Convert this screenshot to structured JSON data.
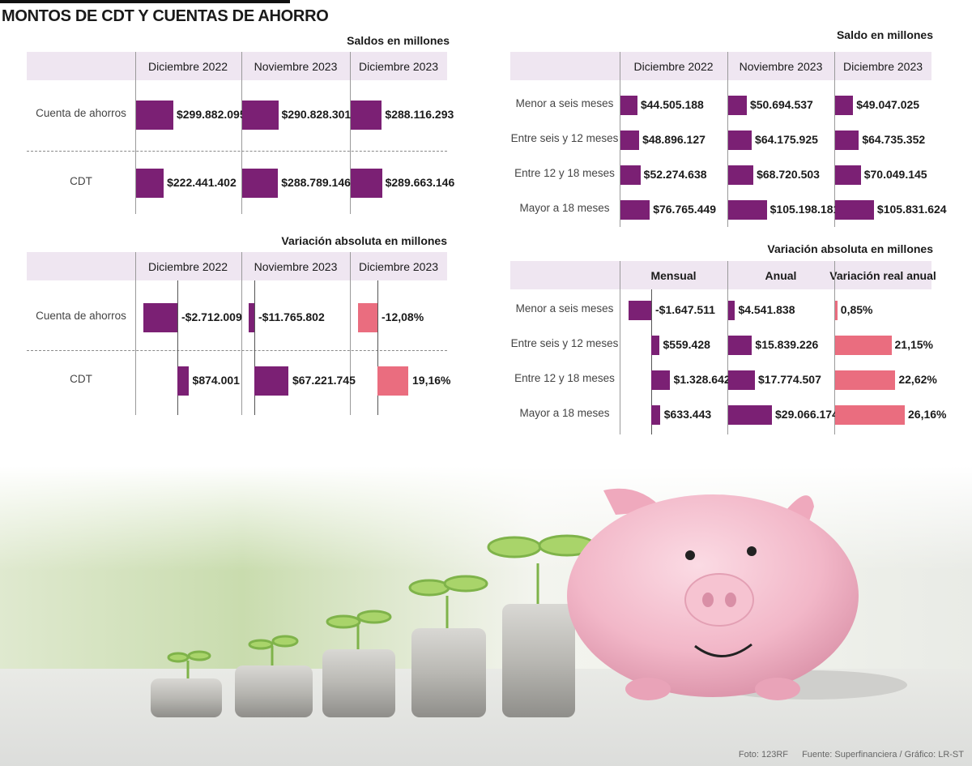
{
  "title": "MONTOS DE CDT Y CUENTAS DE AHORRO",
  "credits": {
    "photo": "Foto: 123RF",
    "source": "Fuente: Superfinanciera / Gráfico: LR-ST"
  },
  "colors": {
    "purple": "#7b2074",
    "pink": "#ea6d7f",
    "header": "#efe6f1"
  },
  "chart_data": [
    {
      "type": "bar",
      "title": "Saldos en millones",
      "categories": [
        "Cuenta de ahorros",
        "CDT"
      ],
      "series": [
        {
          "name": "Diciembre 2022",
          "values": [
            299882095,
            222441402
          ],
          "labels": [
            "$299.882.095",
            "$222.441.402"
          ]
        },
        {
          "name": "Noviembre 2023",
          "values": [
            290828301,
            288789146
          ],
          "labels": [
            "$290.828.301",
            "$288.789.146"
          ]
        },
        {
          "name": "Diciembre 2023",
          "values": [
            288116293,
            289663146
          ],
          "labels": [
            "$288.116.293",
            "$289.663.146"
          ]
        }
      ]
    },
    {
      "type": "bar",
      "title": "Variación absoluta en millones",
      "categories": [
        "Cuenta de ahorros",
        "CDT"
      ],
      "series": [
        {
          "name": "Diciembre 2022",
          "values": [
            -2712009,
            874001
          ],
          "labels": [
            "-$2.712.009",
            "$874.001"
          ]
        },
        {
          "name": "Noviembre 2023",
          "values": [
            -11765802,
            67221745
          ],
          "labels": [
            "-$11.765.802",
            "$67.221.745"
          ]
        },
        {
          "name": "Diciembre 2023",
          "values": [
            -12.08,
            19.16
          ],
          "labels": [
            "-12,08%",
            "19,16%"
          ]
        }
      ]
    },
    {
      "type": "bar",
      "title": "Saldo en millones",
      "categories": [
        "Menor a seis meses",
        "Entre seis y 12 meses",
        "Entre 12 y 18 meses",
        "Mayor a 18 meses"
      ],
      "series": [
        {
          "name": "Diciembre 2022",
          "values": [
            44505188,
            48896127,
            52274638,
            76765449
          ],
          "labels": [
            "$44.505.188",
            "$48.896.127",
            "$52.274.638",
            "$76.765.449"
          ]
        },
        {
          "name": "Noviembre 2023",
          "values": [
            50694537,
            64175925,
            68720503,
            105198181
          ],
          "labels": [
            "$50.694.537",
            "$64.175.925",
            "$68.720.503",
            "$105.198.181"
          ]
        },
        {
          "name": "Diciembre 2023",
          "values": [
            49047025,
            64735352,
            70049145,
            105831624
          ],
          "labels": [
            "$49.047.025",
            "$64.735.352",
            "$70.049.145",
            "$105.831.624"
          ]
        }
      ]
    },
    {
      "type": "bar",
      "title": "Variación absoluta en millones",
      "categories": [
        "Menor a seis meses",
        "Entre seis y 12 meses",
        "Entre 12 y 18 meses",
        "Mayor a 18 meses"
      ],
      "series": [
        {
          "name": "Mensual",
          "values": [
            -1647511,
            559428,
            1328642,
            633443
          ],
          "labels": [
            "-$1.647.511",
            "$559.428",
            "$1.328.642",
            "$633.443"
          ]
        },
        {
          "name": "Anual",
          "values": [
            4541838,
            15839226,
            17774507,
            29066174
          ],
          "labels": [
            "$4.541.838",
            "$15.839.226",
            "$17.774.507",
            "$29.066.174"
          ]
        },
        {
          "name": "Variación real anual",
          "values": [
            0.85,
            21.15,
            22.62,
            26.16
          ],
          "labels": [
            "0,85%",
            "21,15%",
            "22,62%",
            "26,16%"
          ]
        }
      ]
    }
  ]
}
